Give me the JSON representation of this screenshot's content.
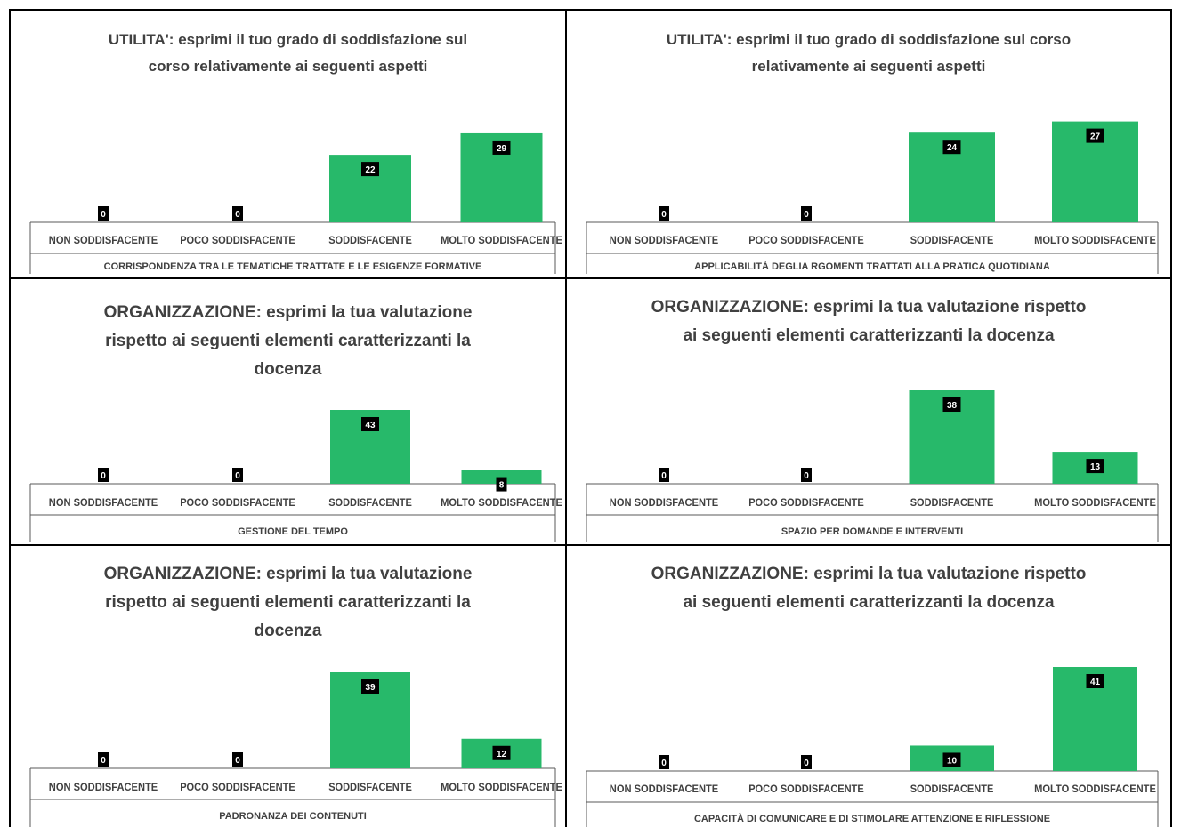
{
  "colors": {
    "bar": "#27b96a",
    "label_bg": "#000000",
    "label_text": "#ffffff",
    "axis_text": "#404040",
    "title": "#404040"
  },
  "chart_data": [
    {
      "type": "bar",
      "title": "UTILITA': esprimi il tuo grado di soddisfazione sul corso relativamente ai seguenti aspetti",
      "categories": [
        "NON SODDISFACENTE",
        "POCO SODDISFACENTE",
        "SODDISFACENTE",
        "MOLTO SODDISFACENTE"
      ],
      "values": [
        0,
        0,
        22,
        29
      ],
      "xlabel": "CORRISPONDENZA TRA LE TEMATICHE TRATTATE E LE ESIGENZE FORMATIVE",
      "ylabel": "",
      "ylim": [
        0,
        40
      ]
    },
    {
      "type": "bar",
      "title": "UTILITA': esprimi il tuo grado di soddisfazione sul corso relativamente ai seguenti aspetti",
      "categories": [
        "NON SODDISFACENTE",
        "POCO SODDISFACENTE",
        "SODDISFACENTE",
        "MOLTO SODDISFACENTE"
      ],
      "values": [
        0,
        0,
        24,
        27
      ],
      "xlabel": "APPLICABILITÀ DEGLIA RGOMENTI TRATTATI ALLA PRATICA QUOTIDIANA",
      "ylabel": "",
      "ylim": [
        0,
        40
      ]
    },
    {
      "type": "bar",
      "title": "ORGANIZZAZIONE: esprimi la tua valutazione rispetto ai seguenti elementi caratterizzanti la docenza",
      "categories": [
        "NON SODDISFACENTE",
        "POCO SODDISFACENTE",
        "SODDISFACENTE",
        "MOLTO SODDISFACENTE"
      ],
      "values": [
        0,
        0,
        43,
        8
      ],
      "xlabel": "GESTIONE DEL TEMPO",
      "ylabel": "",
      "ylim": [
        0,
        43
      ]
    },
    {
      "type": "bar",
      "title": "ORGANIZZAZIONE: esprimi la tua valutazione rispetto ai seguenti elementi caratterizzanti la docenza",
      "categories": [
        "NON SODDISFACENTE",
        "POCO SODDISFACENTE",
        "SODDISFACENTE",
        "MOLTO SODDISFACENTE"
      ],
      "values": [
        0,
        0,
        38,
        13
      ],
      "xlabel": "SPAZIO PER DOMANDE E INTERVENTI",
      "ylabel": "",
      "ylim": [
        0,
        38
      ]
    },
    {
      "type": "bar",
      "title": "ORGANIZZAZIONE: esprimi la tua valutazione rispetto ai seguenti elementi caratterizzanti la docenza",
      "categories": [
        "NON SODDISFACENTE",
        "POCO SODDISFACENTE",
        "SODDISFACENTE",
        "MOLTO SODDISFACENTE"
      ],
      "values": [
        0,
        0,
        39,
        12
      ],
      "xlabel": "PADRONANZA DEI CONTENUTI",
      "ylabel": "",
      "ylim": [
        0,
        39
      ]
    },
    {
      "type": "bar",
      "title": "ORGANIZZAZIONE: esprimi la tua valutazione rispetto ai seguenti elementi caratterizzanti la docenza",
      "categories": [
        "NON SODDISFACENTE",
        "POCO SODDISFACENTE",
        "SODDISFACENTE",
        "MOLTO SODDISFACENTE"
      ],
      "values": [
        0,
        0,
        10,
        41
      ],
      "xlabel": "CAPACITÀ DI COMUNICARE E DI STIMOLARE ATTENZIONE E RIFLESSIONE",
      "ylabel": "",
      "ylim": [
        0,
        41
      ]
    }
  ]
}
